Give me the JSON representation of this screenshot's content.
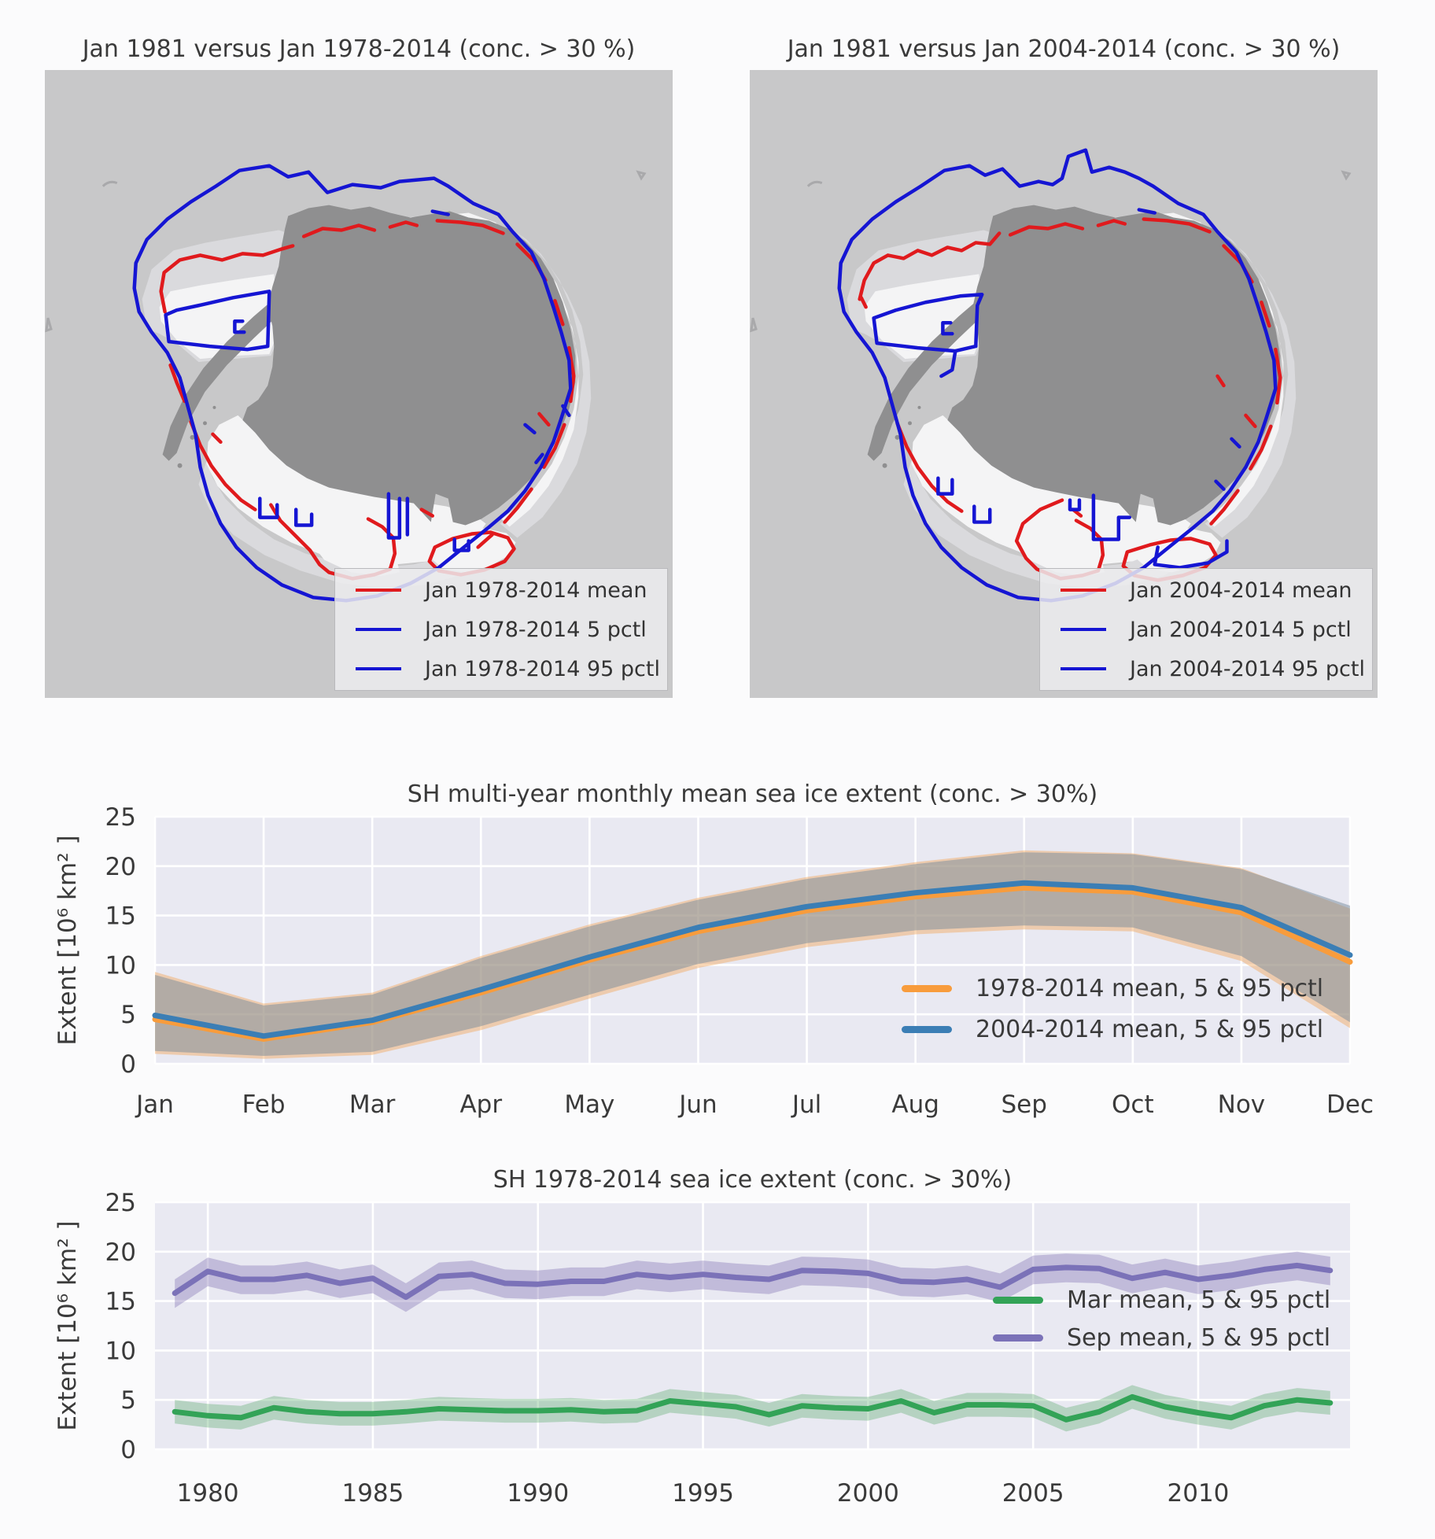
{
  "maps": [
    {
      "title": "Jan 1981 versus Jan 1978-2014 (conc. > 30 %)",
      "legend": [
        {
          "label": "Jan 1978-2014 mean",
          "color": "#e01a1d"
        },
        {
          "label": "Jan 1978-2014 5 pctl",
          "color": "#1515d3"
        },
        {
          "label": "Jan 1978-2014 95 pctl",
          "color": "#1515d3"
        }
      ]
    },
    {
      "title": "Jan 1981 versus Jan 2004-2014 (conc. > 30 %)",
      "legend": [
        {
          "label": "Jan 2004-2014 mean",
          "color": "#e01a1d"
        },
        {
          "label": "Jan 2004-2014 5 pctl",
          "color": "#1515d3"
        },
        {
          "label": "Jan 2004-2014 95 pctl",
          "color": "#1515d3"
        }
      ]
    }
  ],
  "chart_data": [
    {
      "type": "line",
      "title": "SH multi-year monthly mean sea ice extent (conc. > 30%)",
      "ylabel": "Extent [10⁶  km² ]",
      "categories": [
        "Jan",
        "Feb",
        "Mar",
        "Apr",
        "May",
        "Jun",
        "Jul",
        "Aug",
        "Sep",
        "Oct",
        "Nov",
        "Dec"
      ],
      "ylim": [
        0,
        25
      ],
      "yticks": [
        0,
        5,
        10,
        15,
        20,
        25
      ],
      "grid": true,
      "legend_position": "lower right",
      "series": [
        {
          "name": "1978-2014 mean, 5 & 95 pctl",
          "color": "#f89c3c",
          "band_color": "rgba(242,166,90,0.45)",
          "mean": [
            4.5,
            2.5,
            4.2,
            7.2,
            10.5,
            13.4,
            15.5,
            16.9,
            17.8,
            17.4,
            15.3,
            10.3
          ],
          "p5": [
            1.0,
            0.5,
            0.9,
            3.4,
            6.6,
            9.7,
            11.8,
            13.1,
            13.6,
            13.4,
            10.4,
            3.6
          ],
          "p95": [
            9.3,
            6.1,
            7.2,
            10.9,
            14.1,
            16.8,
            18.9,
            20.4,
            21.6,
            21.3,
            19.8,
            15.7
          ]
        },
        {
          "name": "2004-2014 mean, 5 & 95 pctl",
          "color": "#3b7eb5",
          "band_color": "rgba(120,140,155,0.5)",
          "mean": [
            4.9,
            2.8,
            4.4,
            7.5,
            10.8,
            13.8,
            15.9,
            17.3,
            18.3,
            17.8,
            15.8,
            11.0
          ],
          "p5": [
            1.3,
            0.8,
            1.2,
            3.8,
            7.0,
            10.1,
            12.2,
            13.5,
            14.0,
            13.8,
            10.9,
            4.2
          ],
          "p95": [
            9.0,
            5.9,
            7.0,
            10.7,
            13.9,
            16.6,
            18.7,
            20.2,
            21.4,
            21.2,
            19.7,
            16.0
          ]
        }
      ]
    },
    {
      "type": "line",
      "title": "SH 1978-2014 sea ice extent (conc. > 30%)",
      "ylabel": "Extent [10⁶  km² ]",
      "x": [
        1979,
        1980,
        1981,
        1982,
        1983,
        1984,
        1985,
        1986,
        1987,
        1988,
        1989,
        1990,
        1991,
        1992,
        1993,
        1994,
        1995,
        1996,
        1997,
        1998,
        1999,
        2000,
        2001,
        2002,
        2003,
        2004,
        2005,
        2006,
        2007,
        2008,
        2009,
        2010,
        2011,
        2012,
        2013,
        2014
      ],
      "xlim": [
        1978.4,
        2014.6
      ],
      "xticks": [
        1980,
        1985,
        1990,
        1995,
        2000,
        2005,
        2010
      ],
      "ylim": [
        0,
        25
      ],
      "yticks": [
        0,
        5,
        10,
        15,
        20,
        25
      ],
      "grid": true,
      "legend_position": "center right",
      "series": [
        {
          "name": "Mar mean, 5 & 95 pctl",
          "color": "#33a357",
          "band_color": "rgba(85,168,104,0.35)",
          "mean": [
            3.8,
            3.4,
            3.2,
            4.2,
            3.8,
            3.6,
            3.6,
            3.8,
            4.1,
            4.0,
            3.9,
            3.9,
            4.0,
            3.8,
            3.9,
            4.9,
            4.6,
            4.3,
            3.5,
            4.4,
            4.2,
            4.1,
            4.9,
            3.7,
            4.5,
            4.5,
            4.4,
            3.0,
            3.8,
            5.3,
            4.3,
            3.7,
            3.2,
            4.4,
            5.0,
            4.7
          ],
          "p5": [
            2.6,
            2.2,
            2.0,
            3.0,
            2.6,
            2.4,
            2.4,
            2.6,
            2.9,
            2.8,
            2.7,
            2.7,
            2.8,
            2.6,
            2.7,
            3.7,
            3.4,
            3.1,
            2.3,
            3.2,
            3.0,
            2.9,
            3.7,
            2.5,
            3.3,
            3.3,
            3.2,
            1.8,
            2.6,
            4.1,
            3.1,
            2.5,
            2.0,
            3.2,
            3.8,
            3.5
          ],
          "p95": [
            5.0,
            4.6,
            4.4,
            5.4,
            5.0,
            4.8,
            4.8,
            5.0,
            5.3,
            5.2,
            5.1,
            5.1,
            5.2,
            5.0,
            5.1,
            6.1,
            5.8,
            5.5,
            4.7,
            5.6,
            5.4,
            5.3,
            6.1,
            4.9,
            5.7,
            5.7,
            5.6,
            4.2,
            5.0,
            6.5,
            5.5,
            4.9,
            4.4,
            5.6,
            6.2,
            5.9
          ]
        },
        {
          "name": "Sep mean, 5 & 95 pctl",
          "color": "#7b72b8",
          "band_color": "rgba(129,114,179,0.38)",
          "mean": [
            15.8,
            18.0,
            17.2,
            17.2,
            17.6,
            16.8,
            17.3,
            15.4,
            17.5,
            17.7,
            16.8,
            16.7,
            17.0,
            17.0,
            17.7,
            17.4,
            17.7,
            17.4,
            17.2,
            18.1,
            18.0,
            17.8,
            17.0,
            16.9,
            17.2,
            16.4,
            18.2,
            18.4,
            18.3,
            17.3,
            17.9,
            17.2,
            17.6,
            18.2,
            18.6,
            18.1
          ],
          "p5": [
            14.3,
            16.5,
            15.7,
            15.7,
            16.1,
            15.3,
            15.8,
            13.9,
            16.0,
            16.2,
            15.3,
            15.2,
            15.5,
            15.5,
            16.2,
            15.9,
            16.2,
            15.9,
            15.7,
            16.6,
            16.5,
            16.3,
            15.5,
            15.4,
            15.7,
            14.9,
            16.7,
            16.9,
            16.8,
            15.8,
            16.4,
            15.7,
            16.1,
            16.7,
            17.1,
            16.6
          ],
          "p95": [
            17.2,
            19.4,
            18.6,
            18.6,
            19.0,
            18.2,
            18.7,
            16.8,
            18.9,
            19.1,
            18.2,
            18.1,
            18.4,
            18.4,
            19.1,
            18.8,
            19.1,
            18.8,
            18.6,
            19.5,
            19.4,
            19.2,
            18.4,
            18.3,
            18.6,
            17.8,
            19.6,
            19.8,
            19.7,
            18.7,
            19.3,
            18.6,
            19.0,
            19.6,
            20.0,
            19.5
          ]
        }
      ]
    }
  ]
}
